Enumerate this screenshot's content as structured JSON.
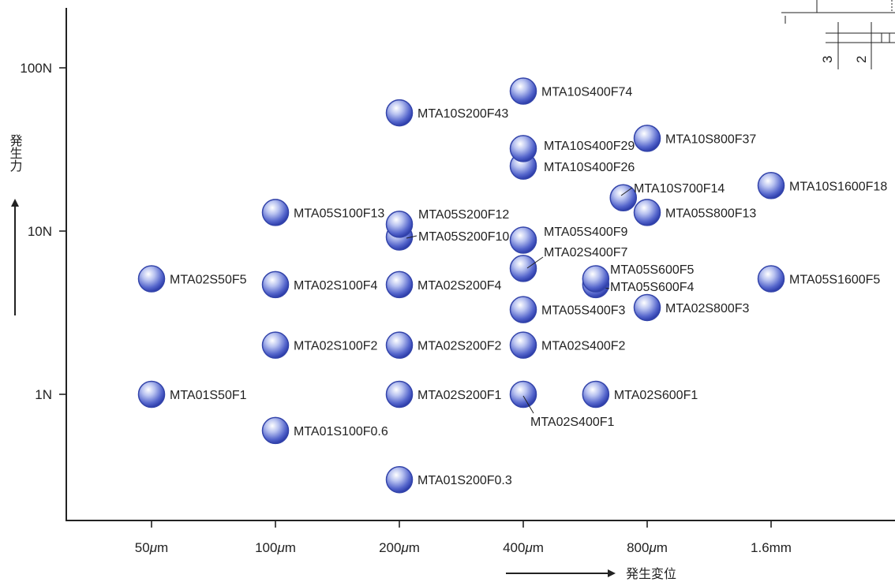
{
  "chart_data": {
    "type": "scatter",
    "x_scale": "log",
    "y_scale": "log",
    "x_ticks": [
      "50μm",
      "100μm",
      "200μm",
      "400μm",
      "800μm",
      "1.6mm"
    ],
    "x_tick_labels": [
      {
        "num": "50",
        "unit": "μ",
        "suffix": "m"
      },
      {
        "num": "100",
        "unit": "μ",
        "suffix": "m"
      },
      {
        "num": "200",
        "unit": "μ",
        "suffix": "m"
      },
      {
        "num": "400",
        "unit": "μ",
        "suffix": "m"
      },
      {
        "num": "800",
        "unit": "μ",
        "suffix": "m"
      },
      {
        "num": "1.6mm",
        "unit": "",
        "suffix": ""
      }
    ],
    "y_ticks": [
      "1N",
      "10N",
      "100N"
    ],
    "xlabel": "発生変位",
    "ylabel": "発生力",
    "points": [
      {
        "name": "MTA01S50F1",
        "x": 50,
        "y": 1
      },
      {
        "name": "MTA02S50F5",
        "x": 50,
        "y": 5.1
      },
      {
        "name": "MTA01S100F0.6",
        "x": 100,
        "y": 0.6
      },
      {
        "name": "MTA02S100F2",
        "x": 100,
        "y": 2.0
      },
      {
        "name": "MTA02S100F4",
        "x": 100,
        "y": 4.7
      },
      {
        "name": "MTA05S100F13",
        "x": 100,
        "y": 13
      },
      {
        "name": "MTA01S200F0.3",
        "x": 200,
        "y": 0.3
      },
      {
        "name": "MTA02S200F1",
        "x": 200,
        "y": 1
      },
      {
        "name": "MTA02S200F2",
        "x": 200,
        "y": 2.0
      },
      {
        "name": "MTA02S200F4",
        "x": 200,
        "y": 4.7
      },
      {
        "name": "MTA05S200F10",
        "x": 200,
        "y": 9.2
      },
      {
        "name": "MTA05S200F12",
        "x": 200,
        "y": 11
      },
      {
        "name": "MTA10S200F43",
        "x": 200,
        "y": 53
      },
      {
        "name": "MTA02S400F1",
        "x": 400,
        "y": 1
      },
      {
        "name": "MTA02S400F2",
        "x": 400,
        "y": 2.0
      },
      {
        "name": "MTA05S400F3",
        "x": 400,
        "y": 3.3
      },
      {
        "name": "MTA02S400F7",
        "x": 400,
        "y": 5.9
      },
      {
        "name": "MTA05S400F9",
        "x": 400,
        "y": 8.8
      },
      {
        "name": "MTA10S400F26",
        "x": 400,
        "y": 25
      },
      {
        "name": "MTA10S400F29",
        "x": 400,
        "y": 32
      },
      {
        "name": "MTA10S400F74",
        "x": 400,
        "y": 72
      },
      {
        "name": "MTA02S600F1",
        "x": 600,
        "y": 1
      },
      {
        "name": "MTA05S600F4",
        "x": 600,
        "y": 4.7
      },
      {
        "name": "MTA05S600F5",
        "x": 600,
        "y": 5.1
      },
      {
        "name": "MTA10S700F14",
        "x": 700,
        "y": 16
      },
      {
        "name": "MTA02S800F3",
        "x": 800,
        "y": 3.4
      },
      {
        "name": "MTA05S800F13",
        "x": 800,
        "y": 13
      },
      {
        "name": "MTA10S800F37",
        "x": 800,
        "y": 37
      },
      {
        "name": "MTA05S1600F5",
        "x": 1600,
        "y": 5.1
      },
      {
        "name": "MTA10S1600F18",
        "x": 1600,
        "y": 19
      }
    ]
  },
  "inset": {
    "dimension_3": "3",
    "dimension_2": "2"
  }
}
